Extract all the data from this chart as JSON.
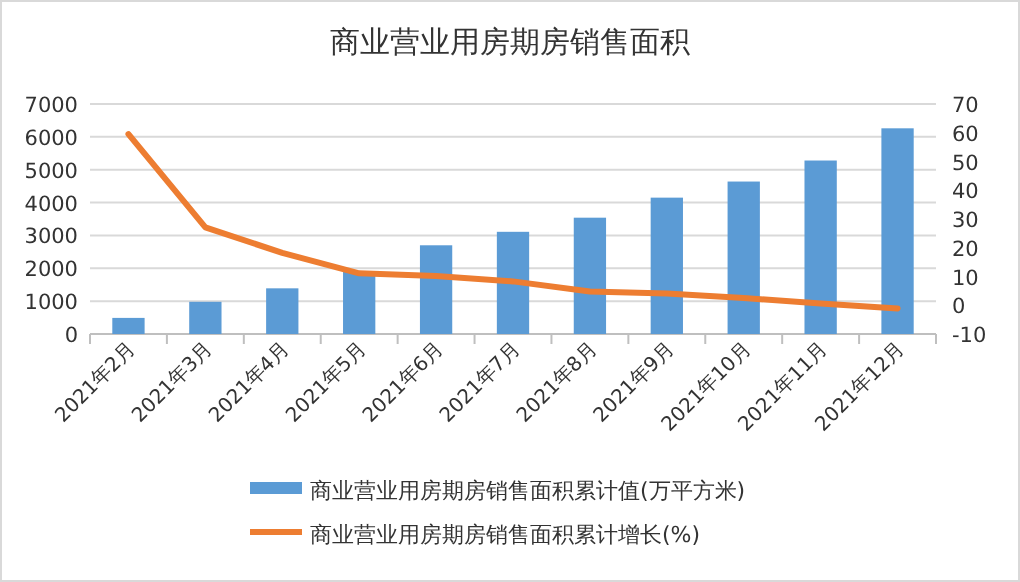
{
  "chart_data": {
    "type": "bar",
    "title": "商业营业用房期房销售面积",
    "categories": [
      "2021年2月",
      "2021年3月",
      "2021年4月",
      "2021年5月",
      "2021年6月",
      "2021年7月",
      "2021年8月",
      "2021年9月",
      "2021年10月",
      "2021年11月",
      "2021年12月"
    ],
    "series": [
      {
        "name": "商业营业用房期房销售面积累计值(万平方米)",
        "color": "#5b9bd5",
        "values": [
          490,
          980,
          1390,
          1900,
          2700,
          3110,
          3540,
          4150,
          4640,
          5280,
          6260
        ]
      },
      {
        "name": "商业营业用房期房销售面积累计增长(%)",
        "type": "line",
        "axis": "y2",
        "color": "#ed7d31",
        "values": [
          59.5,
          27.1,
          18.2,
          11.1,
          10.2,
          8.3,
          4.8,
          4.1,
          2.5,
          0.6,
          -1.1
        ]
      }
    ],
    "ylim": [
      0,
      7000
    ],
    "yticks": [
      0,
      1000,
      2000,
      3000,
      4000,
      5000,
      6000,
      7000
    ],
    "y2lim": [
      -10,
      70
    ],
    "y2ticks": [
      -10,
      0,
      10,
      20,
      30,
      40,
      50,
      60,
      70
    ],
    "grid": "y",
    "legend": "bottom",
    "marker": "none",
    "line_style": "solid"
  }
}
